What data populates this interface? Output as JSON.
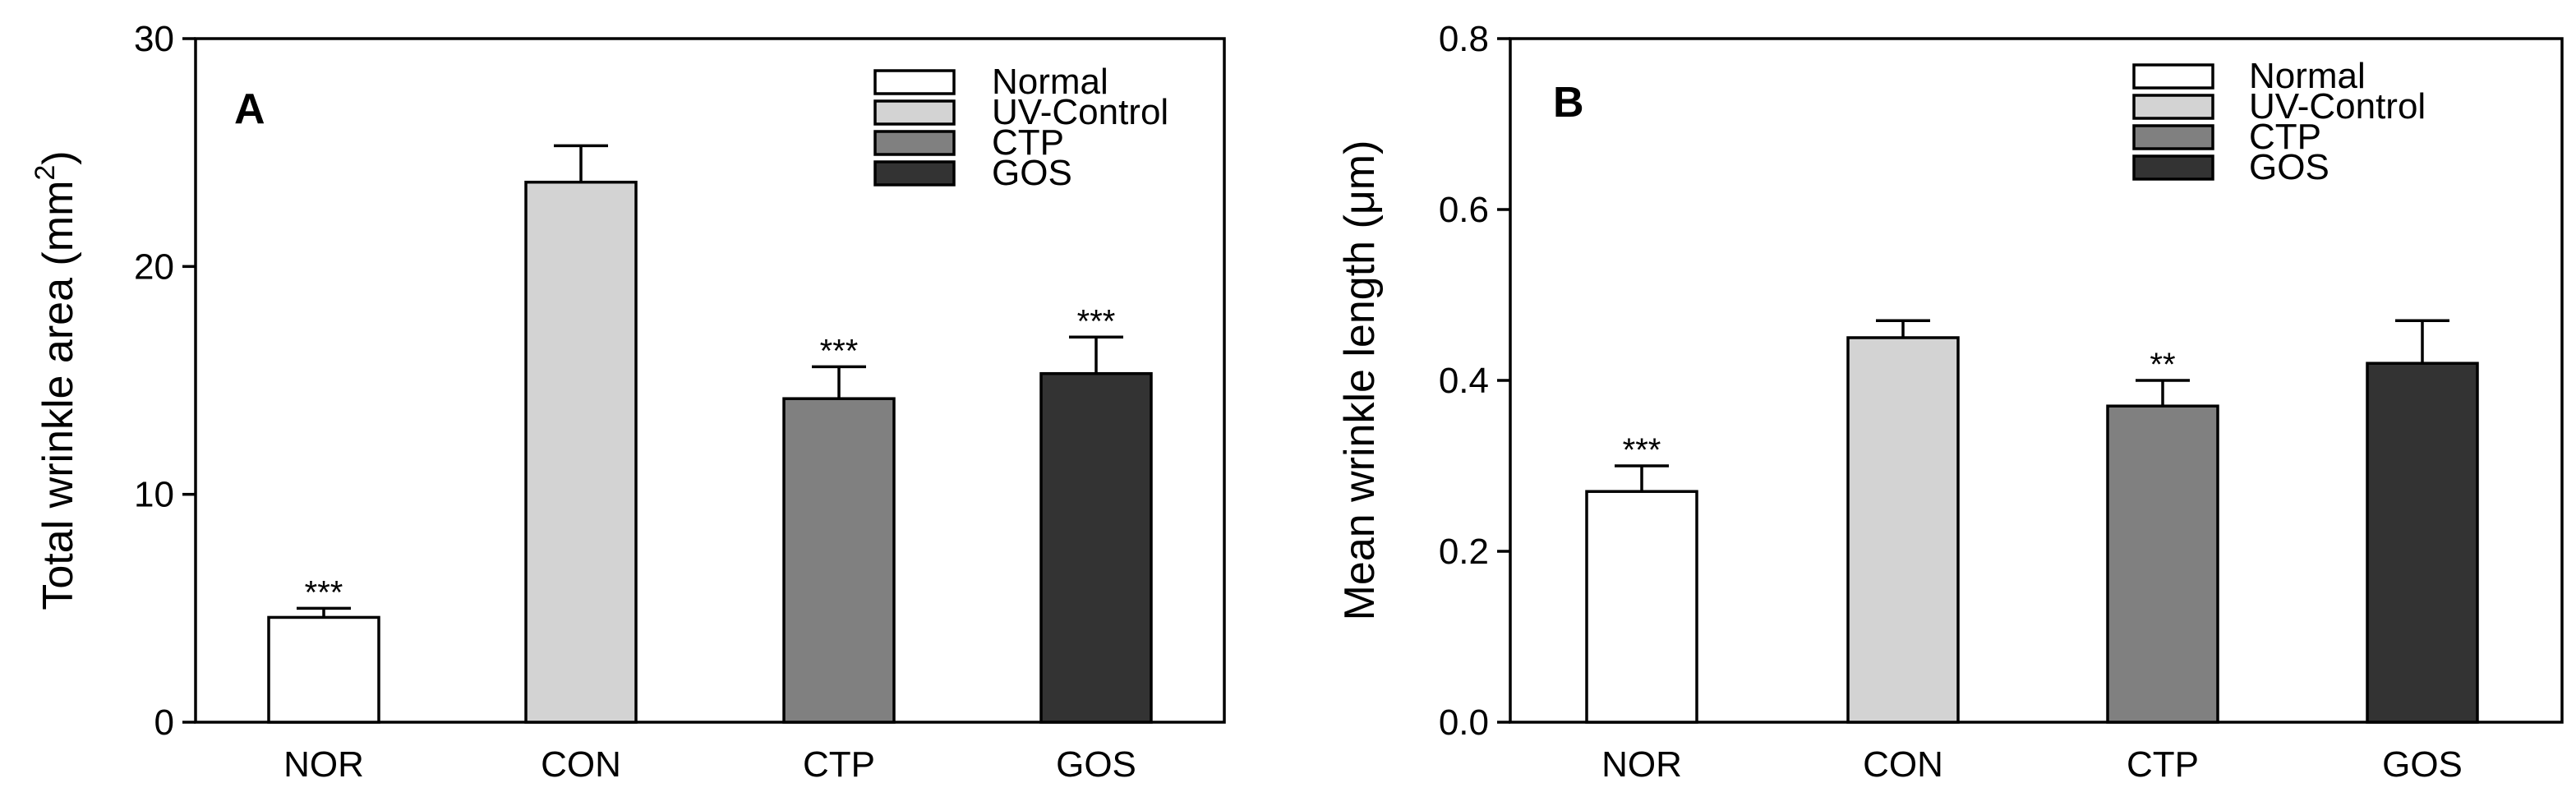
{
  "colors": {
    "normal": "#ffffff",
    "uv_control": "#d3d3d3",
    "ctp": "#808080",
    "gos": "#333333"
  },
  "chart_data": [
    {
      "type": "bar",
      "panel": "A",
      "categories": [
        "NOR",
        "CON",
        "CTP",
        "GOS"
      ],
      "values": [
        4.6,
        23.7,
        14.2,
        15.3
      ],
      "errors": [
        0.4,
        1.6,
        1.4,
        1.6
      ],
      "significance": [
        "***",
        "",
        "***",
        "***"
      ],
      "ylabel": "Total wrinkle area (mm",
      "ylabel_sup": "2",
      "ylabel_end": ")",
      "ylim": [
        0,
        30
      ],
      "yticks": [
        0,
        10,
        20,
        30
      ],
      "ytick_labels": [
        "0",
        "10",
        "20",
        "30"
      ],
      "legend": [
        "Normal",
        "UV-Control",
        "CTP",
        "GOS"
      ],
      "legend_position": "top-right"
    },
    {
      "type": "bar",
      "panel": "B",
      "categories": [
        "NOR",
        "CON",
        "CTP",
        "GOS"
      ],
      "values": [
        0.27,
        0.45,
        0.37,
        0.42
      ],
      "errors": [
        0.03,
        0.02,
        0.03,
        0.05
      ],
      "significance": [
        "***",
        "",
        "**",
        ""
      ],
      "ylabel": "Mean wrinkle length (μm)",
      "ylabel_sup": "",
      "ylabel_end": "",
      "ylim": [
        0,
        0.8
      ],
      "yticks": [
        0,
        0.2,
        0.4,
        0.6,
        0.8
      ],
      "ytick_labels": [
        "0.0",
        "0.2",
        "0.4",
        "0.6",
        "0.8"
      ],
      "legend": [
        "Normal",
        "UV-Control",
        "CTP",
        "GOS"
      ],
      "legend_position": "top-right"
    }
  ]
}
